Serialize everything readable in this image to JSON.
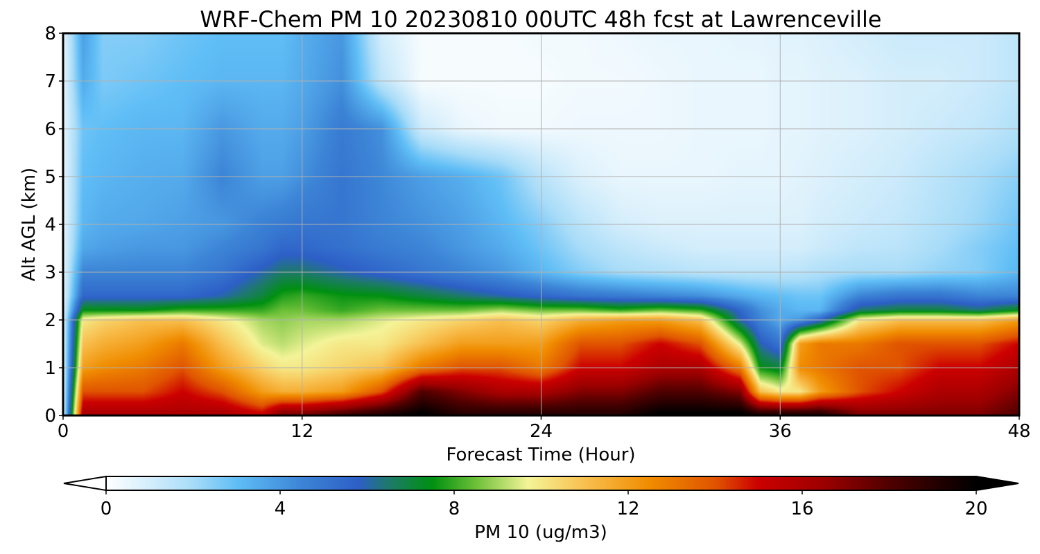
{
  "chart_data": {
    "type": "heatmap",
    "title": "WRF-Chem PM 10  20230810 00UTC 48h fcst at Lawrenceville",
    "xlabel": "Forecast Time (Hour)",
    "ylabel": "Alt AGL (km)",
    "xlim": [
      0,
      48
    ],
    "ylim": [
      0,
      8
    ],
    "x_ticks": [
      "0",
      "12",
      "24",
      "36",
      "48"
    ],
    "y_ticks": [
      "0",
      "1",
      "2",
      "3",
      "4",
      "5",
      "6",
      "7",
      "8"
    ],
    "grid": true,
    "colorbar": {
      "label": "PM 10  (ug/m3)",
      "range": [
        0,
        20
      ],
      "ticks": [
        "0",
        "4",
        "8",
        "12",
        "16",
        "20"
      ],
      "extend": "both",
      "stops": [
        {
          "value": 0,
          "color": "#ffffff"
        },
        {
          "value": 2,
          "color": "#a8dcf8"
        },
        {
          "value": 3,
          "color": "#60bef6"
        },
        {
          "value": 4.5,
          "color": "#3c84d6"
        },
        {
          "value": 5.8,
          "color": "#2d5fc6"
        },
        {
          "value": 6.5,
          "color": "#1e7a6a"
        },
        {
          "value": 7.5,
          "color": "#009010"
        },
        {
          "value": 8.5,
          "color": "#6cc038"
        },
        {
          "value": 9.7,
          "color": "#f4f498"
        },
        {
          "value": 11,
          "color": "#f8c050"
        },
        {
          "value": 12.5,
          "color": "#f08c00"
        },
        {
          "value": 14,
          "color": "#e05400"
        },
        {
          "value": 15,
          "color": "#cc0000"
        },
        {
          "value": 16.5,
          "color": "#9c0000"
        },
        {
          "value": 18,
          "color": "#500000"
        },
        {
          "value": 20,
          "color": "#000000"
        }
      ]
    },
    "approx_field": {
      "hours": [
        0,
        1,
        2,
        4,
        6,
        8,
        10,
        11,
        12,
        14,
        16,
        18,
        20,
        22,
        24,
        26,
        28,
        30,
        32,
        34,
        35,
        36,
        37,
        38,
        40,
        42,
        44,
        46,
        48
      ],
      "altitudes_km": [
        0.05,
        0.5,
        1.0,
        1.5,
        2.0,
        2.2,
        2.5,
        3.0,
        3.5,
        4.0,
        5.0,
        6.0,
        7.0,
        8.0
      ],
      "values": [
        [
          0.5,
          16,
          16,
          16,
          16,
          16,
          15,
          17,
          17,
          18,
          19,
          20,
          19,
          19,
          19,
          19,
          19,
          20,
          20,
          20,
          19,
          19,
          19,
          19,
          17,
          17,
          17,
          17,
          18
        ],
        [
          0.5,
          14,
          14,
          14,
          15,
          14,
          12,
          11.5,
          11.5,
          12,
          14,
          18,
          17,
          16,
          16,
          17,
          17,
          18,
          18,
          17,
          11,
          10,
          10,
          12,
          14,
          15,
          16,
          16,
          17
        ],
        [
          0.5,
          12,
          12.5,
          13,
          14,
          12,
          10.5,
          10,
          10,
          10.5,
          11,
          13,
          14,
          14,
          13,
          15,
          15,
          16,
          16,
          13,
          7.5,
          7,
          12.5,
          13,
          14,
          14,
          15,
          15,
          16
        ],
        [
          0.5,
          11,
          11.5,
          12,
          13,
          11,
          9.5,
          9.2,
          9.5,
          10,
          10,
          11,
          12,
          12,
          12,
          14,
          14,
          15,
          14,
          9.5,
          6,
          5,
          12,
          13,
          13,
          14,
          14,
          14,
          15
        ],
        [
          0.5,
          10,
          10.5,
          11,
          11,
          10,
          9,
          8.8,
          9,
          9,
          9.5,
          10,
          10.5,
          11,
          10.5,
          11.5,
          12,
          12,
          11,
          6,
          4.5,
          3.5,
          4,
          5.5,
          10,
          11,
          11,
          11,
          12
        ],
        [
          0.5,
          7.5,
          7.5,
          7.5,
          8,
          8,
          8,
          8.5,
          8.5,
          8,
          8.5,
          8.5,
          8.5,
          9,
          8.5,
          8.5,
          8,
          8.5,
          8,
          5.5,
          4.2,
          3.5,
          3.2,
          3.2,
          6.5,
          7,
          7,
          6.5,
          7.5
        ],
        [
          0.5,
          5.5,
          5.5,
          5.5,
          5.5,
          6,
          7,
          7.8,
          8,
          7.6,
          7.5,
          7,
          6.5,
          6,
          5.5,
          5,
          4.8,
          4.5,
          4.2,
          3.5,
          3.2,
          3,
          2.8,
          2.8,
          4.5,
          5,
          5,
          4.5,
          4.5
        ],
        [
          0.5,
          4.5,
          4.5,
          4.5,
          4.5,
          5,
          6,
          6.5,
          6.5,
          6,
          5.5,
          5,
          4.5,
          4,
          3.2,
          2.5,
          2,
          1.8,
          1.6,
          1.5,
          1.5,
          1.5,
          1.6,
          1.8,
          2,
          2,
          2.3,
          2.5,
          3.2
        ],
        [
          0.5,
          3.6,
          3.8,
          4,
          4,
          4.5,
          5,
          5.5,
          5.5,
          5.2,
          4.8,
          4.5,
          4,
          3.5,
          2.8,
          2,
          1.5,
          1.2,
          1,
          1,
          1,
          1,
          1,
          1.2,
          1.5,
          1.6,
          2,
          2.5,
          3
        ],
        [
          0.5,
          3.2,
          3.5,
          3.6,
          3.8,
          4,
          4.6,
          4.8,
          5,
          5,
          4.5,
          4.2,
          3.8,
          3.2,
          2.5,
          1.6,
          1,
          0.8,
          0.8,
          0.8,
          0.8,
          0.8,
          0.8,
          1,
          1.2,
          1.4,
          1.8,
          2.2,
          2.8
        ],
        [
          0.5,
          3,
          3.2,
          3.4,
          3.5,
          4.5,
          3.8,
          3.8,
          4.2,
          5,
          4.4,
          3.8,
          3.4,
          2.8,
          1.6,
          0.8,
          0.5,
          0.5,
          0.5,
          0.6,
          0.6,
          0.6,
          0.7,
          0.8,
          1,
          1.2,
          1.6,
          2,
          2.4
        ],
        [
          0.5,
          2.8,
          3,
          3.2,
          3.2,
          4,
          3.5,
          3.5,
          3.8,
          4.8,
          4.2,
          1.2,
          0.5,
          0.3,
          0.3,
          0.4,
          0.4,
          0.4,
          0.5,
          0.5,
          0.5,
          0.6,
          0.6,
          0.7,
          0.8,
          1,
          1.2,
          1.4,
          1.8
        ],
        [
          0.5,
          3.5,
          2.6,
          2.8,
          3,
          3.2,
          3.2,
          3.2,
          3.5,
          4.2,
          1.5,
          0.2,
          0.2,
          0.2,
          0.2,
          0.3,
          0.3,
          0.4,
          0.5,
          0.5,
          0.5,
          0.6,
          0.6,
          0.7,
          0.8,
          1,
          1,
          1.2,
          1.5
        ],
        [
          0.5,
          3.8,
          2.5,
          2.5,
          2.8,
          3,
          3,
          3,
          3.4,
          4,
          1,
          0.2,
          0.2,
          0.2,
          0.3,
          0.3,
          0.4,
          0.5,
          0.5,
          0.6,
          0.6,
          0.7,
          0.7,
          0.8,
          1,
          1.2,
          1.2,
          1.2,
          1.5
        ]
      ]
    }
  }
}
